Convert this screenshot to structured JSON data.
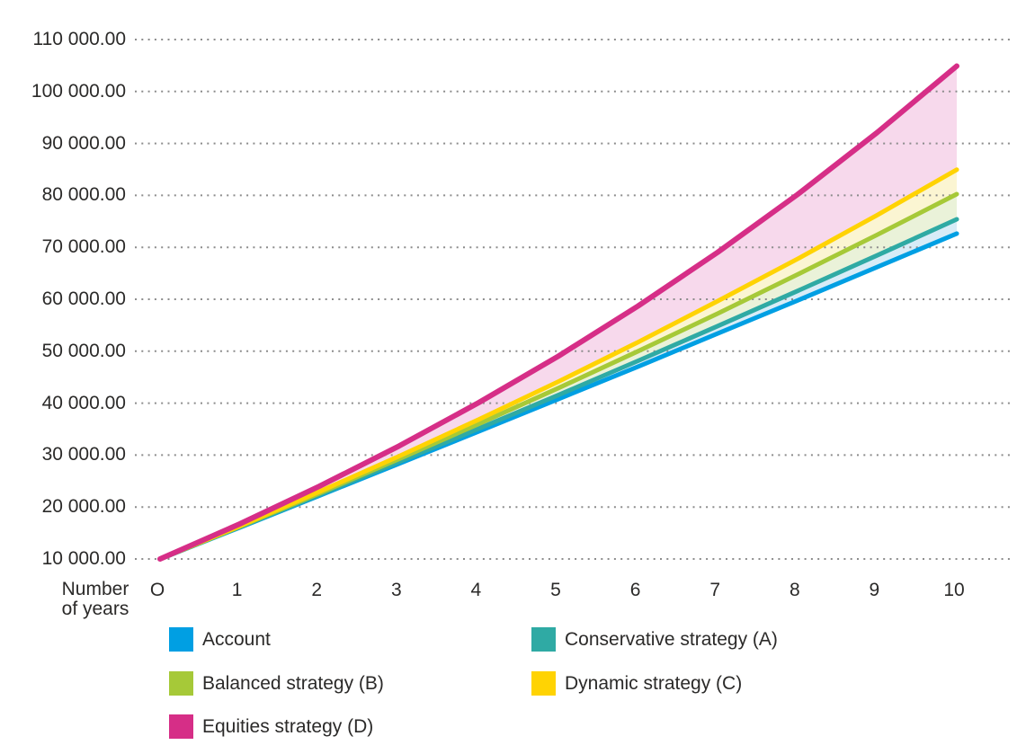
{
  "style": {
    "background": "#FFFFFF",
    "text_color": "#2B2A29",
    "grid_color": "#8C8C8C"
  },
  "chart_data": {
    "type": "line",
    "title": "",
    "xlabel": "Number of years",
    "xlabel_lines": {
      "0": "Number",
      "1": "of years"
    },
    "ylabel": "",
    "grid": "horizontal-dotted",
    "legend_position": "bottom-two-columns",
    "x_values": [
      0,
      1,
      2,
      3,
      4,
      5,
      6,
      7,
      8,
      9,
      10
    ],
    "x_tick_labels": [
      "O",
      "1",
      "2",
      "3",
      "4",
      "5",
      "6",
      "7",
      "8",
      "9",
      "10"
    ],
    "y_tick_values": [
      10000,
      20000,
      30000,
      40000,
      50000,
      60000,
      70000,
      80000,
      90000,
      100000,
      110000
    ],
    "y_tick_labels": [
      "10 000.00",
      "20 000.00",
      "30 000.00",
      "40 000.00",
      "50 000.00",
      "60 000.00",
      "70 000.00",
      "80 000.00",
      "90 000.00",
      "100 000.00",
      "110 000.00"
    ],
    "ylim": [
      10000,
      110000
    ],
    "series": [
      {
        "name": "Account",
        "color": "#009FE3",
        "values": [
          10000,
          16050,
          22200,
          28350,
          34550,
          40800,
          47050,
          53400,
          59750,
          66200,
          72650
        ]
      },
      {
        "name": "Conservative strategy (A)",
        "color": "#2FAAA4",
        "values": [
          10000,
          16150,
          22350,
          28700,
          35100,
          41550,
          48150,
          54850,
          61600,
          68450,
          75400
        ]
      },
      {
        "name": "Balanced strategy (B)",
        "color": "#A6C938",
        "values": [
          10000,
          16250,
          22650,
          29250,
          36000,
          42900,
          50000,
          57250,
          64750,
          72400,
          80250
        ]
      },
      {
        "name": "Dynamic strategy (C)",
        "color": "#FFD303",
        "values": [
          10000,
          16350,
          22950,
          29800,
          36850,
          44150,
          51750,
          59650,
          67750,
          76200,
          84950
        ]
      },
      {
        "name": "Equities strategy (D)",
        "color": "#D62E87",
        "values": [
          10000,
          16750,
          24000,
          31750,
          40100,
          49050,
          58700,
          69050,
          80150,
          92100,
          104900
        ]
      }
    ],
    "bands": [
      {
        "upper": 1,
        "lower": 0,
        "fill": "#D8ECF7"
      },
      {
        "upper": 2,
        "lower": 1,
        "fill": "#EAF2D9"
      },
      {
        "upper": 3,
        "lower": 2,
        "fill": "#FBF5D2"
      },
      {
        "upper": 4,
        "lower": 3,
        "fill": "#F7D9EC"
      }
    ],
    "legend_layout": [
      {
        "series": 0,
        "col": 0,
        "row": 0
      },
      {
        "series": 1,
        "col": 1,
        "row": 0
      },
      {
        "series": 2,
        "col": 0,
        "row": 1
      },
      {
        "series": 3,
        "col": 1,
        "row": 1
      },
      {
        "series": 4,
        "col": 0,
        "row": 2
      }
    ]
  }
}
